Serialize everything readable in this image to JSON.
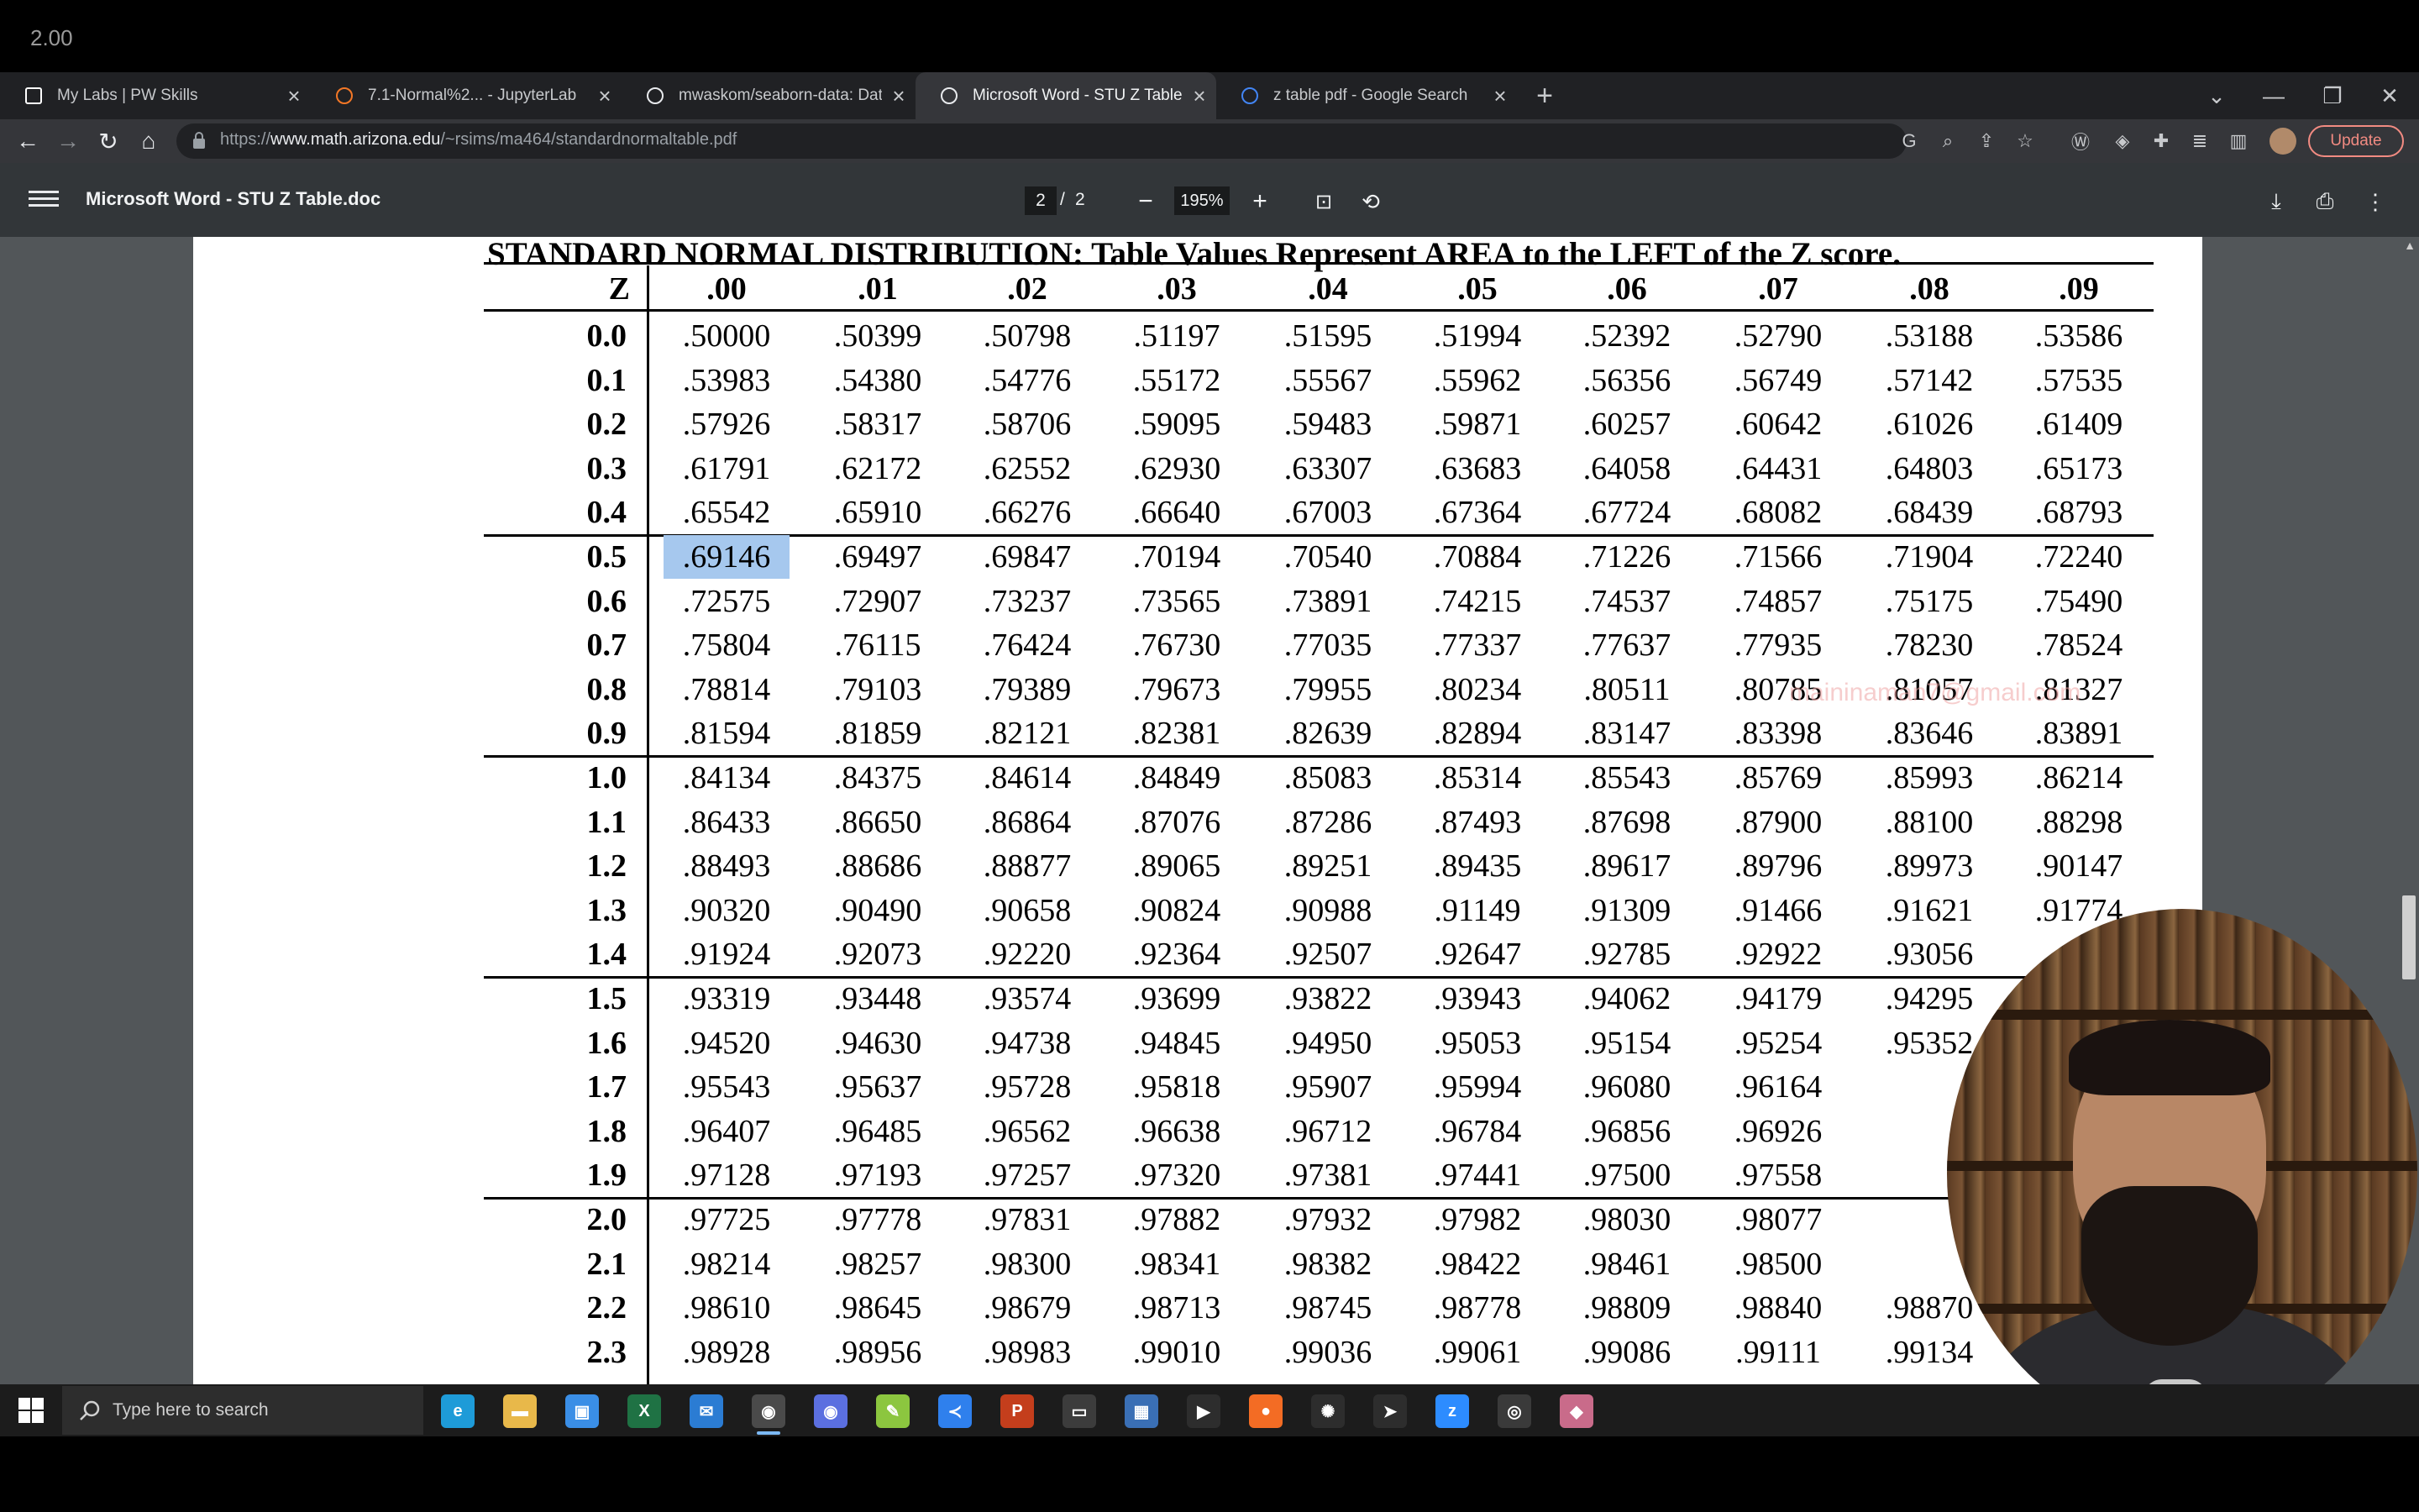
{
  "overlay_number": "2.00",
  "browser": {
    "tabs": [
      {
        "title": "My Labs | PW Skills",
        "active": false
      },
      {
        "title": "7.1-Normal%2... - JupyterLab",
        "active": false
      },
      {
        "title": "mwaskom/seaborn-data: Data re",
        "active": false
      },
      {
        "title": "Microsoft Word - STU Z Table.do",
        "active": true
      },
      {
        "title": "z table pdf - Google Search",
        "active": false
      }
    ],
    "url_prefix": "https://",
    "url_host": "www.math.arizona.edu",
    "url_path": "/~rsims/ma464/standardnormaltable.pdf",
    "update_label": "Update",
    "icons": [
      "back-icon",
      "forward-icon",
      "reload-icon",
      "home-icon",
      "lock-icon",
      "google-icon",
      "zoom-icon",
      "share-icon",
      "star-icon",
      "extension-icons",
      "profile-avatar"
    ]
  },
  "pdf_viewer": {
    "doc_title": "Microsoft Word - STU Z Table.doc",
    "current_page": "2",
    "page_separator": "/",
    "total_pages": "2",
    "zoom": "195%",
    "zoom_out": "−",
    "zoom_in": "+"
  },
  "table": {
    "heading": "STANDARD NORMAL DISTRIBUTION: Table Values Represent AREA to the LEFT of the Z score.",
    "corner": "Z",
    "columns": [
      ".00",
      ".01",
      ".02",
      ".03",
      ".04",
      ".05",
      ".06",
      ".07",
      ".08",
      ".09"
    ],
    "selected": {
      "row": 5,
      "col": 0
    },
    "rows": [
      {
        "z": "0.0",
        "v": [
          ".50000",
          ".50399",
          ".50798",
          ".51197",
          ".51595",
          ".51994",
          ".52392",
          ".52790",
          ".53188",
          ".53586"
        ]
      },
      {
        "z": "0.1",
        "v": [
          ".53983",
          ".54380",
          ".54776",
          ".55172",
          ".55567",
          ".55962",
          ".56356",
          ".56749",
          ".57142",
          ".57535"
        ]
      },
      {
        "z": "0.2",
        "v": [
          ".57926",
          ".58317",
          ".58706",
          ".59095",
          ".59483",
          ".59871",
          ".60257",
          ".60642",
          ".61026",
          ".61409"
        ]
      },
      {
        "z": "0.3",
        "v": [
          ".61791",
          ".62172",
          ".62552",
          ".62930",
          ".63307",
          ".63683",
          ".64058",
          ".64431",
          ".64803",
          ".65173"
        ]
      },
      {
        "z": "0.4",
        "v": [
          ".65542",
          ".65910",
          ".66276",
          ".66640",
          ".67003",
          ".67364",
          ".67724",
          ".68082",
          ".68439",
          ".68793"
        ]
      },
      {
        "z": "0.5",
        "v": [
          ".69146",
          ".69497",
          ".69847",
          ".70194",
          ".70540",
          ".70884",
          ".71226",
          ".71566",
          ".71904",
          ".72240"
        ]
      },
      {
        "z": "0.6",
        "v": [
          ".72575",
          ".72907",
          ".73237",
          ".73565",
          ".73891",
          ".74215",
          ".74537",
          ".74857",
          ".75175",
          ".75490"
        ]
      },
      {
        "z": "0.7",
        "v": [
          ".75804",
          ".76115",
          ".76424",
          ".76730",
          ".77035",
          ".77337",
          ".77637",
          ".77935",
          ".78230",
          ".78524"
        ]
      },
      {
        "z": "0.8",
        "v": [
          ".78814",
          ".79103",
          ".79389",
          ".79673",
          ".79955",
          ".80234",
          ".80511",
          ".80785",
          ".81057",
          ".81327"
        ]
      },
      {
        "z": "0.9",
        "v": [
          ".81594",
          ".81859",
          ".82121",
          ".82381",
          ".82639",
          ".82894",
          ".83147",
          ".83398",
          ".83646",
          ".83891"
        ]
      },
      {
        "z": "1.0",
        "v": [
          ".84134",
          ".84375",
          ".84614",
          ".84849",
          ".85083",
          ".85314",
          ".85543",
          ".85769",
          ".85993",
          ".86214"
        ]
      },
      {
        "z": "1.1",
        "v": [
          ".86433",
          ".86650",
          ".86864",
          ".87076",
          ".87286",
          ".87493",
          ".87698",
          ".87900",
          ".88100",
          ".88298"
        ]
      },
      {
        "z": "1.2",
        "v": [
          ".88493",
          ".88686",
          ".88877",
          ".89065",
          ".89251",
          ".89435",
          ".89617",
          ".89796",
          ".89973",
          ".90147"
        ]
      },
      {
        "z": "1.3",
        "v": [
          ".90320",
          ".90490",
          ".90658",
          ".90824",
          ".90988",
          ".91149",
          ".91309",
          ".91466",
          ".91621",
          ".91774"
        ]
      },
      {
        "z": "1.4",
        "v": [
          ".91924",
          ".92073",
          ".92220",
          ".92364",
          ".92507",
          ".92647",
          ".92785",
          ".92922",
          ".93056",
          ""
        ]
      },
      {
        "z": "1.5",
        "v": [
          ".93319",
          ".93448",
          ".93574",
          ".93699",
          ".93822",
          ".93943",
          ".94062",
          ".94179",
          ".94295",
          ""
        ]
      },
      {
        "z": "1.6",
        "v": [
          ".94520",
          ".94630",
          ".94738",
          ".94845",
          ".94950",
          ".95053",
          ".95154",
          ".95254",
          ".95352",
          ""
        ]
      },
      {
        "z": "1.7",
        "v": [
          ".95543",
          ".95637",
          ".95728",
          ".95818",
          ".95907",
          ".95994",
          ".96080",
          ".96164",
          "",
          ""
        ]
      },
      {
        "z": "1.8",
        "v": [
          ".96407",
          ".96485",
          ".96562",
          ".96638",
          ".96712",
          ".96784",
          ".96856",
          ".96926",
          "",
          ""
        ]
      },
      {
        "z": "1.9",
        "v": [
          ".97128",
          ".97193",
          ".97257",
          ".97320",
          ".97381",
          ".97441",
          ".97500",
          ".97558",
          "",
          ""
        ]
      },
      {
        "z": "2.0",
        "v": [
          ".97725",
          ".97778",
          ".97831",
          ".97882",
          ".97932",
          ".97982",
          ".98030",
          ".98077",
          "",
          ""
        ]
      },
      {
        "z": "2.1",
        "v": [
          ".98214",
          ".98257",
          ".98300",
          ".98341",
          ".98382",
          ".98422",
          ".98461",
          ".98500",
          "",
          ""
        ]
      },
      {
        "z": "2.2",
        "v": [
          ".98610",
          ".98645",
          ".98679",
          ".98713",
          ".98745",
          ".98778",
          ".98809",
          ".98840",
          ".98870",
          ""
        ]
      },
      {
        "z": "2.3",
        "v": [
          ".98928",
          ".98956",
          ".98983",
          ".99010",
          ".99036",
          ".99061",
          ".99086",
          ".99111",
          ".99134",
          ""
        ]
      }
    ]
  },
  "watermark": "maininaman7@gmail.com",
  "taskbar": {
    "search_placeholder": "Type here to search",
    "apps": [
      {
        "name": "edge",
        "color": "#1e9bd8",
        "glyph": "e"
      },
      {
        "name": "file-explorer",
        "color": "#e8b84a",
        "glyph": "▬"
      },
      {
        "name": "store",
        "color": "#3a8ee6",
        "glyph": "▣"
      },
      {
        "name": "excel",
        "color": "#1f7244",
        "glyph": "X"
      },
      {
        "name": "mail",
        "color": "#2b7cd3",
        "glyph": "✉"
      },
      {
        "name": "chrome",
        "color": "#4a4a4a",
        "glyph": "◉"
      },
      {
        "name": "chrome-profile",
        "color": "#5b6fe0",
        "glyph": "◉"
      },
      {
        "name": "notepad-plus",
        "color": "#8cc63f",
        "glyph": "✎"
      },
      {
        "name": "vscode",
        "color": "#2f80ed",
        "glyph": "≺"
      },
      {
        "name": "powerpoint",
        "color": "#c43e1c",
        "glyph": "P"
      },
      {
        "name": "terminal",
        "color": "#3c3c3c",
        "glyph": "▭"
      },
      {
        "name": "calculator",
        "color": "#3a6fb5",
        "glyph": "▦"
      },
      {
        "name": "media-app",
        "color": "#2d2d2d",
        "glyph": "▶"
      },
      {
        "name": "postman",
        "color": "#f36c24",
        "glyph": "●"
      },
      {
        "name": "settings-tool",
        "color": "#2d2d2d",
        "glyph": "✺"
      },
      {
        "name": "powershell-app",
        "color": "#2d2d2d",
        "glyph": "➤"
      },
      {
        "name": "zoom",
        "color": "#2d8cff",
        "glyph": "z"
      },
      {
        "name": "obs",
        "color": "#3a3a3a",
        "glyph": "◎"
      },
      {
        "name": "recorder",
        "color": "#c96b8a",
        "glyph": "◆"
      }
    ]
  }
}
